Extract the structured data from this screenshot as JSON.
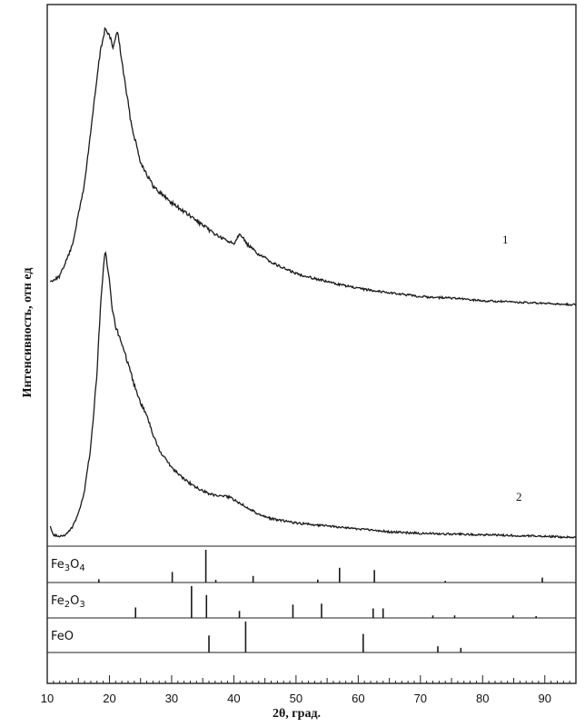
{
  "chart_data": {
    "type": "line",
    "xlabel": "2θ, град.",
    "ylabel": "Интенсивность, отн ед",
    "xlim": [
      10,
      95
    ],
    "x_ticks": [
      10,
      20,
      30,
      40,
      50,
      60,
      70,
      80,
      90
    ],
    "grid": false,
    "series": [
      {
        "name": "1",
        "x": [
          10.5,
          12,
          14,
          16,
          17.5,
          18.5,
          19.3,
          20,
          20.6,
          21.3,
          21.8,
          22.5,
          23.5,
          25,
          27,
          30,
          33,
          36,
          38,
          40,
          41,
          42,
          44,
          47,
          50,
          55,
          60,
          65,
          70,
          75,
          80,
          85,
          90,
          95
        ],
        "y": [
          0.06,
          0.08,
          0.19,
          0.42,
          0.71,
          0.9,
          0.99,
          0.96,
          0.92,
          0.98,
          0.9,
          0.79,
          0.64,
          0.5,
          0.41,
          0.35,
          0.3,
          0.25,
          0.22,
          0.2,
          0.24,
          0.2,
          0.16,
          0.12,
          0.09,
          0.06,
          0.035,
          0.02,
          0.005,
          0.0,
          -0.01,
          -0.015,
          -0.02,
          -0.025
        ]
      },
      {
        "name": "2",
        "x": [
          10.5,
          11,
          12,
          13,
          14,
          15,
          16,
          17,
          18,
          18.6,
          19.3,
          20,
          20.5,
          21,
          22,
          23,
          24,
          25,
          26,
          27,
          28,
          30,
          32,
          34,
          36,
          38,
          39,
          40,
          42,
          44,
          46,
          50,
          55,
          60,
          65,
          70,
          80,
          90,
          95
        ],
        "y": [
          0.01,
          -0.02,
          -0.025,
          -0.02,
          0.005,
          0.05,
          0.13,
          0.28,
          0.53,
          0.78,
          0.95,
          0.85,
          0.74,
          0.69,
          0.63,
          0.56,
          0.49,
          0.43,
          0.39,
          0.32,
          0.27,
          0.21,
          0.17,
          0.14,
          0.12,
          0.11,
          0.11,
          0.1,
          0.075,
          0.05,
          0.035,
          0.02,
          0.01,
          0.0,
          -0.01,
          -0.015,
          -0.02,
          -0.025,
          -0.03
        ]
      }
    ],
    "reference_patterns": [
      {
        "name": "Fe₃O₄",
        "name_parts": [
          "Fe",
          "3",
          "O",
          "4"
        ],
        "peaks": [
          {
            "x": 18.3,
            "I": 0.1
          },
          {
            "x": 30.1,
            "I": 0.32
          },
          {
            "x": 35.5,
            "I": 1.0
          },
          {
            "x": 37.1,
            "I": 0.08
          },
          {
            "x": 43.1,
            "I": 0.2
          },
          {
            "x": 53.5,
            "I": 0.09
          },
          {
            "x": 57.0,
            "I": 0.45
          },
          {
            "x": 62.6,
            "I": 0.38
          },
          {
            "x": 74.0,
            "I": 0.05
          },
          {
            "x": 89.6,
            "I": 0.15
          }
        ]
      },
      {
        "name": "Fe₂O₃",
        "name_parts": [
          "Fe",
          "2",
          "O",
          "3"
        ],
        "peaks": [
          {
            "x": 24.2,
            "I": 0.33
          },
          {
            "x": 33.2,
            "I": 1.0
          },
          {
            "x": 35.6,
            "I": 0.72
          },
          {
            "x": 40.9,
            "I": 0.22
          },
          {
            "x": 49.5,
            "I": 0.42
          },
          {
            "x": 54.1,
            "I": 0.45
          },
          {
            "x": 62.4,
            "I": 0.3
          },
          {
            "x": 64.0,
            "I": 0.3
          },
          {
            "x": 72.0,
            "I": 0.08
          },
          {
            "x": 75.5,
            "I": 0.08
          },
          {
            "x": 84.9,
            "I": 0.08
          },
          {
            "x": 88.6,
            "I": 0.06
          }
        ]
      },
      {
        "name": "FeO",
        "name_parts": [
          "Fe",
          "O"
        ],
        "peaks": [
          {
            "x": 36.0,
            "I": 0.55
          },
          {
            "x": 41.9,
            "I": 1.0
          },
          {
            "x": 60.8,
            "I": 0.6
          },
          {
            "x": 72.8,
            "I": 0.2
          },
          {
            "x": 76.5,
            "I": 0.15
          }
        ]
      }
    ]
  }
}
